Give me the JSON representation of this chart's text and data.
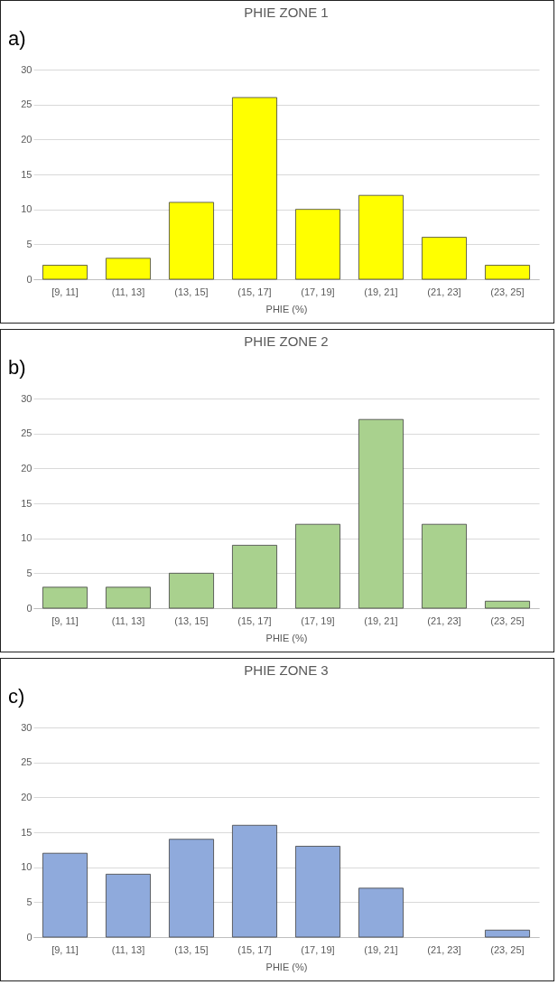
{
  "chart_data": [
    {
      "type": "bar",
      "title": "PHIE ZONE 1",
      "xlabel": "PHIE (%)",
      "annotations": [
        "a)"
      ],
      "categories": [
        "[9, 11]",
        "(11, 13]",
        "(13, 15]",
        "(15, 17]",
        "(17, 19]",
        "(19, 21]",
        "(21, 23]",
        "(23, 25]"
      ],
      "values": [
        2,
        3,
        11,
        26,
        10,
        12,
        6,
        2
      ],
      "color": "#ffff00",
      "ylim": [
        0,
        30
      ],
      "yticks": [
        0,
        5,
        10,
        15,
        20,
        25,
        30
      ],
      "grid": "y"
    },
    {
      "type": "bar",
      "title": "PHIE ZONE 2",
      "xlabel": "PHIE (%)",
      "annotations": [
        "b)"
      ],
      "categories": [
        "[9, 11]",
        "(11, 13]",
        "(13, 15]",
        "(15, 17]",
        "(17, 19]",
        "(19, 21]",
        "(21, 23]",
        "(23, 25]"
      ],
      "values": [
        3,
        3,
        5,
        9,
        12,
        27,
        12,
        1
      ],
      "color": "#a9d18e",
      "ylim": [
        0,
        30
      ],
      "yticks": [
        0,
        5,
        10,
        15,
        20,
        25,
        30
      ],
      "grid": "y"
    },
    {
      "type": "bar",
      "title": "PHIE ZONE 3",
      "xlabel": "PHIE (%)",
      "annotations": [
        "c)"
      ],
      "categories": [
        "[9, 11]",
        "(11, 13]",
        "(13, 15]",
        "(15, 17]",
        "(17, 19]",
        "(19, 21]",
        "(21, 23]",
        "(23, 25]"
      ],
      "values": [
        12,
        9,
        14,
        16,
        13,
        7,
        0,
        1
      ],
      "color": "#8faadc",
      "ylim": [
        0,
        30
      ],
      "yticks": [
        0,
        5,
        10,
        15,
        20,
        25,
        30
      ],
      "grid": "y"
    }
  ]
}
